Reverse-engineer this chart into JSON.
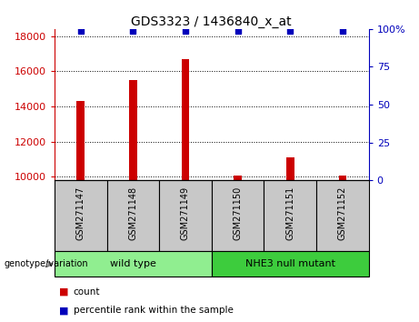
{
  "title": "GDS3323 / 1436840_x_at",
  "samples": [
    "GSM271147",
    "GSM271148",
    "GSM271149",
    "GSM271150",
    "GSM271151",
    "GSM271152"
  ],
  "counts": [
    14300,
    15500,
    16700,
    10080,
    11100,
    10080
  ],
  "percentile_ranks": [
    99,
    99,
    99,
    99,
    99,
    99
  ],
  "ylim_left": [
    9800,
    18400
  ],
  "ylim_right": [
    0,
    100
  ],
  "yticks_left": [
    10000,
    12000,
    14000,
    16000,
    18000
  ],
  "yticks_right": [
    0,
    25,
    50,
    75,
    100
  ],
  "groups": [
    {
      "label": "wild type",
      "indices": [
        0,
        1,
        2
      ],
      "color": "#90EE90"
    },
    {
      "label": "NHE3 null mutant",
      "indices": [
        3,
        4,
        5
      ],
      "color": "#3DCC3D"
    }
  ],
  "bar_color": "#CC0000",
  "bar_width": 0.15,
  "percentile_color": "#0000BB",
  "sample_box_color": "#C8C8C8",
  "left_axis_color": "#CC0000",
  "right_axis_color": "#0000BB",
  "background_color": "#FFFFFF",
  "grid_color": "#000000",
  "genotype_label": "genotype/variation"
}
